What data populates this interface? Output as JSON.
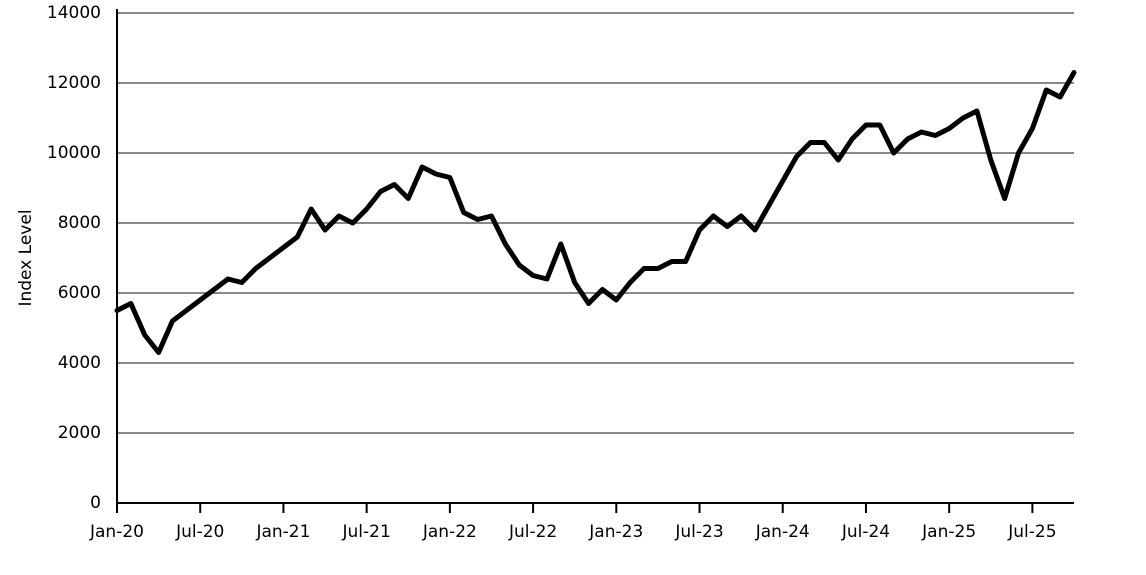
{
  "chart_data": {
    "type": "line",
    "y_label": "Index Level",
    "x": [
      "2020-01",
      "2020-02",
      "2020-03",
      "2020-04",
      "2020-05",
      "2020-06",
      "2020-07",
      "2020-08",
      "2020-09",
      "2020-10",
      "2020-11",
      "2020-12",
      "2021-01",
      "2021-02",
      "2021-03",
      "2021-04",
      "2021-05",
      "2021-06",
      "2021-07",
      "2021-08",
      "2021-09",
      "2021-10",
      "2021-11",
      "2021-12",
      "2022-01",
      "2022-02",
      "2022-03",
      "2022-04",
      "2022-05",
      "2022-06",
      "2022-07",
      "2022-08",
      "2022-09",
      "2022-10",
      "2022-11",
      "2022-12",
      "2023-01",
      "2023-02",
      "2023-03",
      "2023-04",
      "2023-05",
      "2023-06",
      "2023-07",
      "2023-08",
      "2023-09",
      "2023-10",
      "2023-11",
      "2023-12",
      "2024-01",
      "2024-02",
      "2024-03",
      "2024-04",
      "2024-05",
      "2024-06",
      "2024-07",
      "2024-08",
      "2024-09",
      "2024-10",
      "2024-11",
      "2024-12",
      "2025-01",
      "2025-02",
      "2025-03",
      "2025-04",
      "2025-05",
      "2025-06",
      "2025-07",
      "2025-08",
      "2025-09",
      "2025-10"
    ],
    "series": [
      {
        "name": "Index",
        "color": "#000000",
        "values": [
          5500,
          5700,
          4800,
          4300,
          5200,
          5500,
          5800,
          6100,
          6400,
          6300,
          6700,
          7000,
          7300,
          7600,
          8400,
          7800,
          8200,
          8000,
          8400,
          8900,
          9100,
          8700,
          9600,
          9400,
          9300,
          8300,
          8100,
          8200,
          7400,
          6800,
          6500,
          6400,
          7400,
          6300,
          5700,
          6100,
          5800,
          6300,
          6700,
          6700,
          6900,
          6900,
          7800,
          8200,
          7900,
          8200,
          7800,
          8500,
          9200,
          9900,
          10300,
          10300,
          9800,
          10400,
          10800,
          10800,
          10000,
          10400,
          10600,
          10500,
          10700,
          11000,
          11200,
          9800,
          8700,
          10000,
          10700,
          11800,
          11600,
          12300
        ]
      }
    ],
    "xlim": [
      "2020-01",
      "2025-10"
    ],
    "xticks": [
      {
        "value": "2020-01",
        "label": "Jan-20"
      },
      {
        "value": "2020-07",
        "label": "Jul-20"
      },
      {
        "value": "2021-01",
        "label": "Jan-21"
      },
      {
        "value": "2021-07",
        "label": "Jul-21"
      },
      {
        "value": "2022-01",
        "label": "Jan-22"
      },
      {
        "value": "2022-07",
        "label": "Jul-22"
      },
      {
        "value": "2023-01",
        "label": "Jan-23"
      },
      {
        "value": "2023-07",
        "label": "Jul-23"
      },
      {
        "value": "2024-01",
        "label": "Jan-24"
      },
      {
        "value": "2024-07",
        "label": "Jul-24"
      },
      {
        "value": "2025-01",
        "label": "Jan-25"
      },
      {
        "value": "2025-07",
        "label": "Jul-25"
      }
    ],
    "ylim": [
      0,
      14000
    ],
    "yticks": [
      0,
      2000,
      4000,
      6000,
      8000,
      10000,
      12000,
      14000
    ],
    "grid": true
  }
}
